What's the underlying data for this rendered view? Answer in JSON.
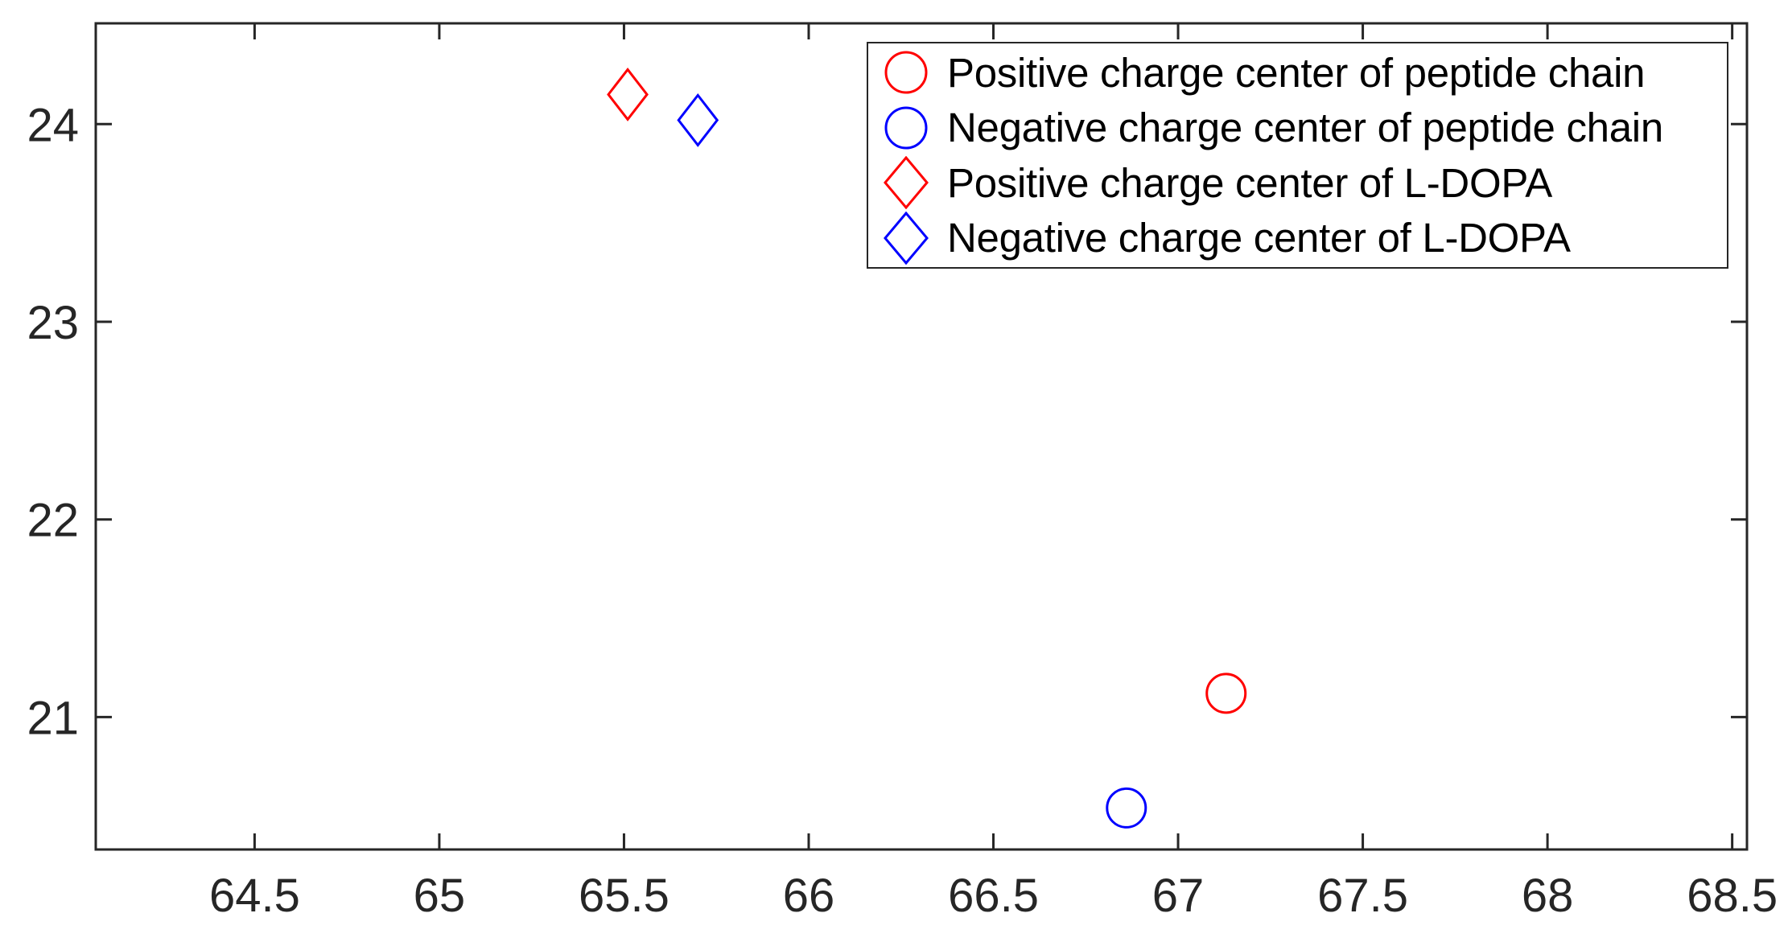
{
  "figure": {
    "background": "#FFFFFF"
  },
  "colors": {
    "axis": "#262626",
    "tick_label": "#262626",
    "legend_border": "#262626",
    "legend_text": "#000000",
    "series_red": "#FF0000",
    "series_blue": "#0000FF"
  },
  "chart_data": {
    "type": "scatter",
    "title": "",
    "xlabel": "",
    "ylabel": "",
    "xlim": [
      64.07,
      68.54
    ],
    "ylim": [
      20.33,
      24.51
    ],
    "xticks": [
      64.5,
      65,
      65.5,
      66,
      66.5,
      67,
      67.5,
      68,
      68.5
    ],
    "xtick_labels": [
      "64.5",
      "65",
      "65.5",
      "66",
      "66.5",
      "67",
      "67.5",
      "68",
      "68.5"
    ],
    "yticks": [
      21,
      22,
      23,
      24
    ],
    "ytick_labels": [
      "21",
      "22",
      "23",
      "24"
    ],
    "grid": false,
    "box": true,
    "tick_direction": "in",
    "legend_position": "top-right",
    "series": [
      {
        "name": "Positive charge center of peptide chain",
        "marker": "circle",
        "color": "#FF0000",
        "points": [
          [
            67.13,
            21.12
          ]
        ]
      },
      {
        "name": "Negative charge center of peptide chain",
        "marker": "circle",
        "color": "#0000FF",
        "points": [
          [
            66.86,
            20.54
          ]
        ]
      },
      {
        "name": "Positive charge center of L-DOPA",
        "marker": "diamond",
        "color": "#FF0000",
        "points": [
          [
            65.51,
            24.15
          ]
        ]
      },
      {
        "name": "Negative charge center of L-DOPA",
        "marker": "diamond",
        "color": "#0000FF",
        "points": [
          [
            65.7,
            24.02
          ]
        ]
      }
    ]
  }
}
